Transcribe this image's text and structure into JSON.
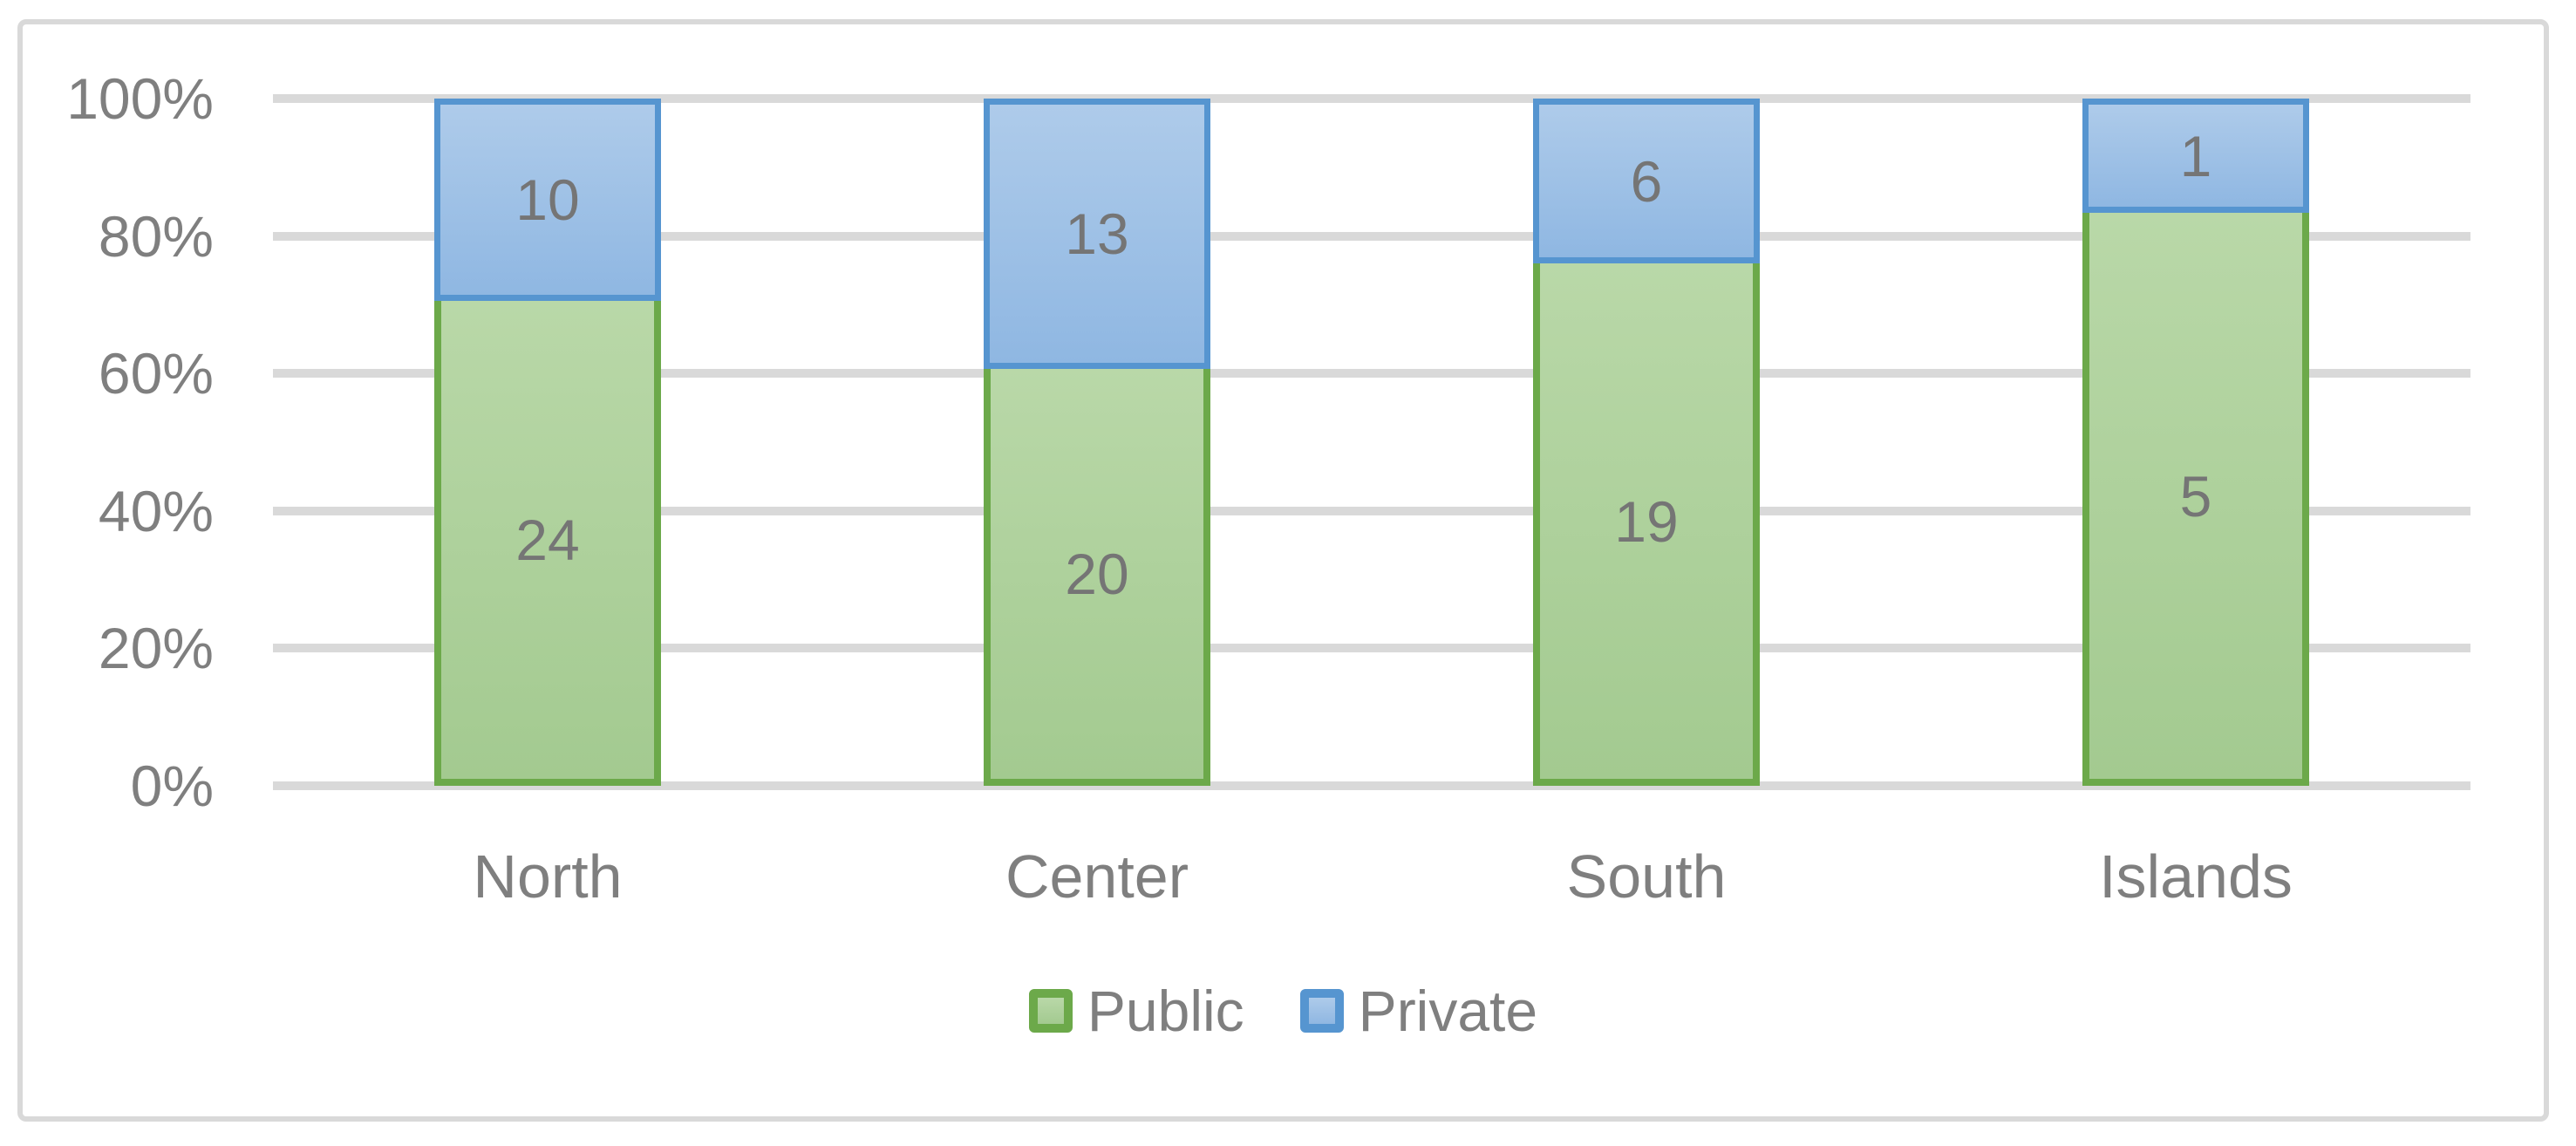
{
  "chart_data": {
    "type": "bar",
    "variant": "stacked-100-percent-column",
    "title": "",
    "xlabel": "",
    "ylabel": "",
    "categories": [
      "North",
      "Center",
      "South",
      "Islands"
    ],
    "series": [
      {
        "name": "Public",
        "values": [
          24,
          20,
          19,
          5
        ],
        "fill_top": "#B9D8A8",
        "fill_bottom": "#A3CA90",
        "border_color": "#6CA94A"
      },
      {
        "name": "Private",
        "values": [
          10,
          13,
          6,
          1
        ],
        "fill_top": "#AECBEA",
        "fill_bottom": "#8FB7E2",
        "border_color": "#5695D0"
      }
    ],
    "data_labels": true,
    "y_ticks": [
      "0%",
      "20%",
      "40%",
      "60%",
      "80%",
      "100%"
    ],
    "ylim": [
      0,
      100
    ],
    "grid": true,
    "gridline_color": "#D9D9D9",
    "axis_text_color": "#7F7F7F",
    "data_label_color": "#757575",
    "legend_position": "bottom",
    "legend_labels": [
      "Public",
      "Private"
    ]
  }
}
